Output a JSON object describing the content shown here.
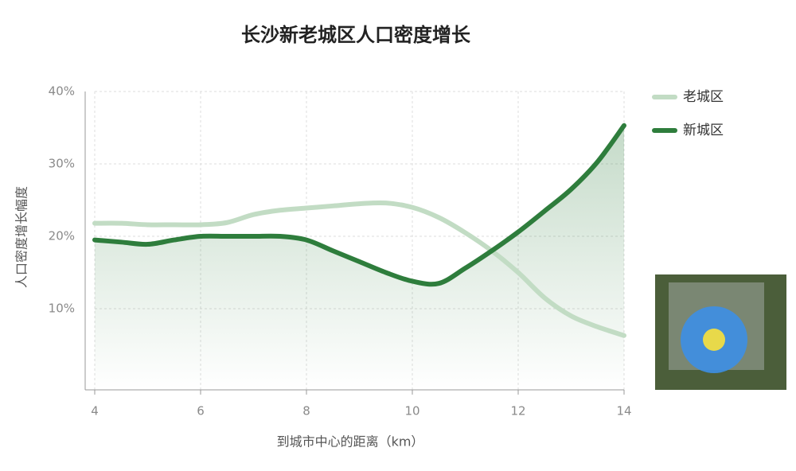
{
  "chart_data": {
    "type": "line",
    "title": "长沙新老城区人口密度增长",
    "x_label": "到城市中心的距离（km）",
    "y_label": "人口密度增长幅度",
    "x": [
      4,
      4.5,
      5,
      5.5,
      6,
      6.5,
      7,
      7.5,
      8,
      8.5,
      9,
      9.5,
      10,
      10.5,
      11,
      11.5,
      12,
      12.5,
      13,
      13.5,
      14
    ],
    "series": [
      {
        "name": "老城区",
        "color": "#c2dcc4",
        "values": [
          21.8,
          21.8,
          21.6,
          21.6,
          21.6,
          21.9,
          23,
          23.6,
          23.9,
          24.2,
          24.5,
          24.6,
          24,
          22.6,
          20.5,
          18,
          15,
          11.5,
          9,
          7.5,
          6.3
        ]
      },
      {
        "name": "新城区",
        "color": "#2e7d3c",
        "values": [
          19.5,
          19.2,
          18.9,
          19.5,
          20,
          20,
          20,
          20,
          19.5,
          18,
          16.5,
          15,
          13.8,
          13.5,
          15.6,
          18,
          20.6,
          23.5,
          26.5,
          30.3,
          35.3
        ]
      }
    ],
    "xlim": [
      4,
      14
    ],
    "xticks": [
      4,
      6,
      8,
      10,
      12,
      14
    ],
    "ylim": [
      -1.2,
      40
    ],
    "yticks": [
      {
        "value": 10,
        "label": "10%"
      },
      {
        "value": 20,
        "label": "20%"
      },
      {
        "value": 30,
        "label": "30%"
      },
      {
        "value": 40,
        "label": "40%"
      }
    ],
    "grid": true,
    "legend": "right"
  }
}
